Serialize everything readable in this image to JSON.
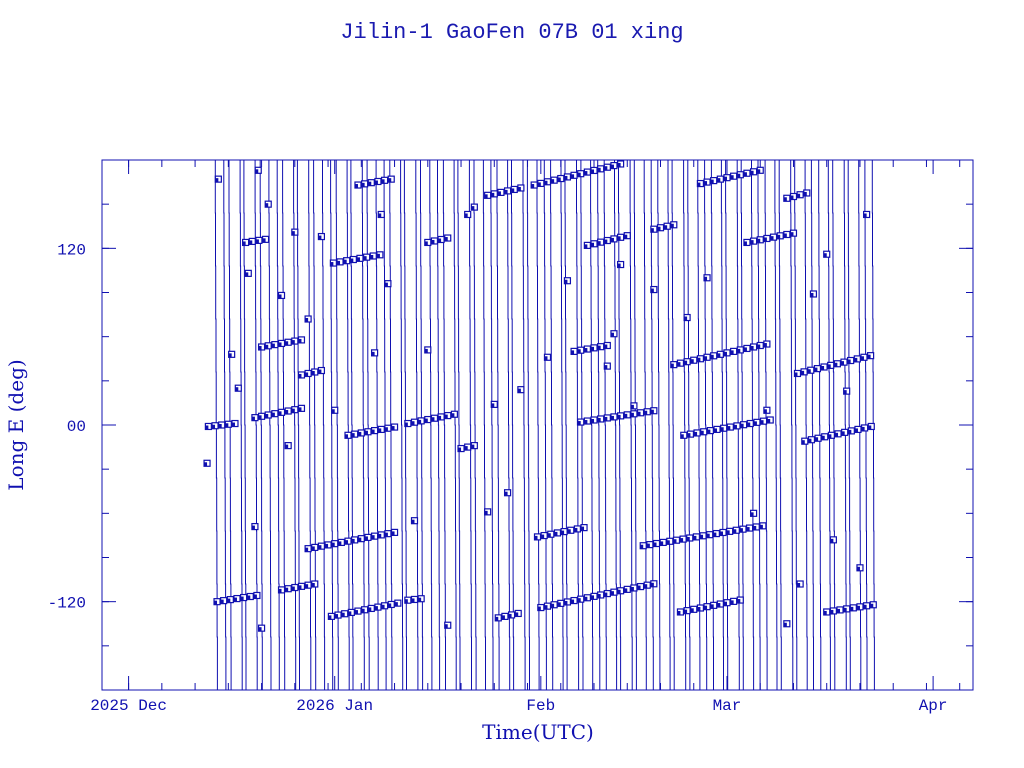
{
  "chart_data": {
    "type": "scatter",
    "title": "Jilin-1 GaoFen 07B 01 xing",
    "xlabel": "Time(UTC)",
    "ylabel": "Long E (deg)",
    "x_units": "days since 2025-12-01",
    "xlim": [
      -4,
      127
    ],
    "ylim": [
      -180,
      180
    ],
    "x_ticks": [
      {
        "day": 0,
        "label": "2025 Dec"
      },
      {
        "day": 31,
        "label": "2026 Jan"
      },
      {
        "day": 62,
        "label": "Feb"
      },
      {
        "day": 90,
        "label": "Mar"
      },
      {
        "day": 121,
        "label": "Apr"
      }
    ],
    "x_minor_step_days": 5,
    "y_ticks": [
      {
        "value": 120,
        "label": "120"
      },
      {
        "value": 0,
        "label": "00"
      },
      {
        "value": -120,
        "label": "-120"
      }
    ],
    "y_minor_step": 30,
    "grid": false,
    "color": "#1010b0",
    "pass_lines": {
      "start_day": 13,
      "end_day": 112,
      "interval_days": 1.15,
      "drift_days": 0.35
    },
    "series": [
      {
        "start_day": 13.3,
        "start_lon": -120,
        "count": 7,
        "step": 0.7
      },
      {
        "start_day": 23,
        "start_lon": -112,
        "count": 6,
        "step": 0.8
      },
      {
        "start_day": 30.5,
        "start_lon": -130,
        "count": 11,
        "step": 0.9
      },
      {
        "start_day": 42,
        "start_lon": -119,
        "count": 3,
        "step": 0.5
      },
      {
        "start_day": 55.6,
        "start_lon": -131,
        "count": 4,
        "step": 1.0
      },
      {
        "start_day": 62,
        "start_lon": -124,
        "count": 18,
        "step": 0.95
      },
      {
        "start_day": 83,
        "start_lon": -127,
        "count": 10,
        "step": 0.9
      },
      {
        "start_day": 105,
        "start_lon": -127,
        "count": 8,
        "step": 0.7
      },
      {
        "start_day": 27,
        "start_lon": -84,
        "count": 14,
        "step": 0.85
      },
      {
        "start_day": 61.5,
        "start_lon": -76,
        "count": 8,
        "step": 0.9
      },
      {
        "start_day": 77.4,
        "start_lon": -82,
        "count": 19,
        "step": 0.75
      },
      {
        "start_day": 12,
        "start_lon": -1,
        "count": 5,
        "step": 0.5
      },
      {
        "start_day": 19,
        "start_lon": 5,
        "count": 8,
        "step": 0.9
      },
      {
        "start_day": 33,
        "start_lon": -7,
        "count": 8,
        "step": 0.8
      },
      {
        "start_day": 42,
        "start_lon": 1,
        "count": 8,
        "step": 0.9
      },
      {
        "start_day": 50,
        "start_lon": -16,
        "count": 3,
        "step": 1.0
      },
      {
        "start_day": 68,
        "start_lon": 2,
        "count": 12,
        "step": 0.7
      },
      {
        "start_day": 83.5,
        "start_lon": -7,
        "count": 14,
        "step": 0.8
      },
      {
        "start_day": 101.7,
        "start_lon": -11,
        "count": 11,
        "step": 1.0
      },
      {
        "start_day": 20,
        "start_lon": 53,
        "count": 7,
        "step": 0.8
      },
      {
        "start_day": 26,
        "start_lon": 34,
        "count": 4,
        "step": 1.0
      },
      {
        "start_day": 67,
        "start_lon": 50,
        "count": 6,
        "step": 0.8
      },
      {
        "start_day": 82,
        "start_lon": 41,
        "count": 15,
        "step": 1.0
      },
      {
        "start_day": 100.6,
        "start_lon": 35,
        "count": 12,
        "step": 1.1
      },
      {
        "start_day": 17.6,
        "start_lon": 124,
        "count": 4,
        "step": 0.7
      },
      {
        "start_day": 30.8,
        "start_lon": 110,
        "count": 8,
        "step": 0.8
      },
      {
        "start_day": 45,
        "start_lon": 124,
        "count": 4,
        "step": 1.0
      },
      {
        "start_day": 69,
        "start_lon": 122,
        "count": 7,
        "step": 1.1
      },
      {
        "start_day": 79,
        "start_lon": 133,
        "count": 4,
        "step": 1.0
      },
      {
        "start_day": 93,
        "start_lon": 124,
        "count": 8,
        "step": 0.9
      },
      {
        "start_day": 34.5,
        "start_lon": 163,
        "count": 6,
        "step": 0.8
      },
      {
        "start_day": 54,
        "start_lon": 156,
        "count": 6,
        "step": 1.0
      },
      {
        "start_day": 61,
        "start_lon": 163,
        "count": 14,
        "step": 1.1
      },
      {
        "start_day": 86,
        "start_lon": 164,
        "count": 10,
        "step": 1.0
      },
      {
        "start_day": 99,
        "start_lon": 154,
        "count": 4,
        "step": 1.2
      }
    ],
    "isolated_points": [
      [
        11.8,
        -26
      ],
      [
        13.5,
        167
      ],
      [
        15.5,
        48
      ],
      [
        16.5,
        25
      ],
      [
        18,
        103
      ],
      [
        19,
        -69
      ],
      [
        19.5,
        173
      ],
      [
        20,
        -138
      ],
      [
        21,
        150
      ],
      [
        23,
        88
      ],
      [
        24,
        -14
      ],
      [
        25,
        131
      ],
      [
        27,
        72
      ],
      [
        29,
        128
      ],
      [
        31,
        10
      ],
      [
        37,
        49
      ],
      [
        38,
        143
      ],
      [
        39,
        96
      ],
      [
        43,
        -65
      ],
      [
        45,
        51
      ],
      [
        48,
        -136
      ],
      [
        51,
        143
      ],
      [
        52,
        148
      ],
      [
        54,
        -59
      ],
      [
        55,
        14
      ],
      [
        57,
        -46
      ],
      [
        59,
        24
      ],
      [
        63,
        46
      ],
      [
        66,
        98
      ],
      [
        72,
        40
      ],
      [
        73,
        62
      ],
      [
        74,
        109
      ],
      [
        76,
        13
      ],
      [
        79,
        92
      ],
      [
        84,
        73
      ],
      [
        87,
        100
      ],
      [
        94,
        -60
      ],
      [
        96,
        10
      ],
      [
        99,
        -135
      ],
      [
        101,
        -108
      ],
      [
        103,
        89
      ],
      [
        105,
        116
      ],
      [
        106,
        -78
      ],
      [
        108,
        23
      ],
      [
        110,
        -97
      ],
      [
        111,
        143
      ]
    ]
  }
}
